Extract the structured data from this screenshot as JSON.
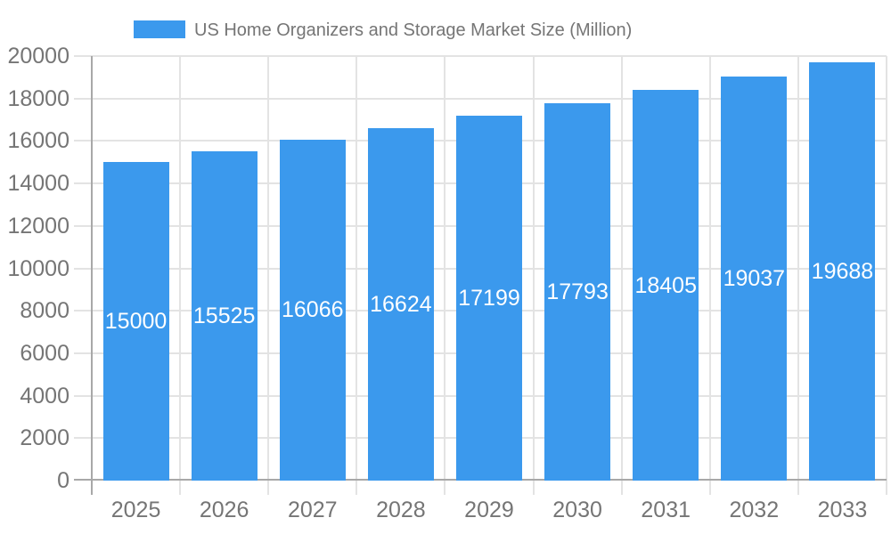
{
  "chart_data": {
    "type": "bar",
    "title": "US Home Organizers and Storage Market Size (Million)",
    "legend": {
      "position": "top",
      "entries": [
        "US Home Organizers and Storage Market Size (Million)"
      ]
    },
    "categories": [
      "2025",
      "2026",
      "2027",
      "2028",
      "2029",
      "2030",
      "2031",
      "2032",
      "2033"
    ],
    "series": [
      {
        "name": "US Home Organizers and Storage Market Size (Million)",
        "values": [
          15000,
          15525,
          16066,
          16624,
          17199,
          17793,
          18405,
          19037,
          19688
        ]
      }
    ],
    "value_labels_shown": true,
    "xlabel": "",
    "ylabel": "",
    "ylim": [
      0,
      20000
    ],
    "y_ticks": [
      0,
      2000,
      4000,
      6000,
      8000,
      10000,
      12000,
      14000,
      16000,
      18000,
      20000
    ],
    "grid": true,
    "colors": {
      "bar": "#3B99ED",
      "gridline": "#e3e3e3",
      "axis_line": "#a8a8a8",
      "tick_label": "#757575",
      "value_label": "#ffffff",
      "background": "#ffffff"
    }
  }
}
